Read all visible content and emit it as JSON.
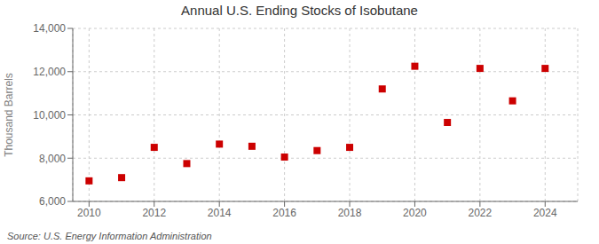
{
  "chart_data": {
    "type": "scatter",
    "title": "Annual U.S. Ending Stocks of Isobutane",
    "y_label": "Thousand Barrels",
    "annotations": [
      "Source: U.S. Energy Information Administration"
    ],
    "x": [
      2010,
      2011,
      2012,
      2013,
      2014,
      2015,
      2016,
      2017,
      2018,
      2019,
      2020,
      2021,
      2022,
      2023,
      2024
    ],
    "values": [
      6950,
      7100,
      8500,
      7750,
      8650,
      8550,
      8050,
      8350,
      8500,
      11200,
      12250,
      9650,
      12150,
      10650,
      12150
    ],
    "color": "#cc0000",
    "marker": "square",
    "xlim": [
      2009.5,
      2025.0
    ],
    "ylim": [
      6000,
      14000
    ],
    "xticks": [
      2010,
      2012,
      2014,
      2016,
      2018,
      2020,
      2022,
      2024
    ],
    "yticks": [
      {
        "value": 6000,
        "label": "6,000"
      },
      {
        "value": 8000,
        "label": "8,000"
      },
      {
        "value": 10000,
        "label": "10,000"
      },
      {
        "value": 12000,
        "label": "12,000"
      },
      {
        "value": 14000,
        "label": "14,000"
      }
    ],
    "grid": true
  }
}
